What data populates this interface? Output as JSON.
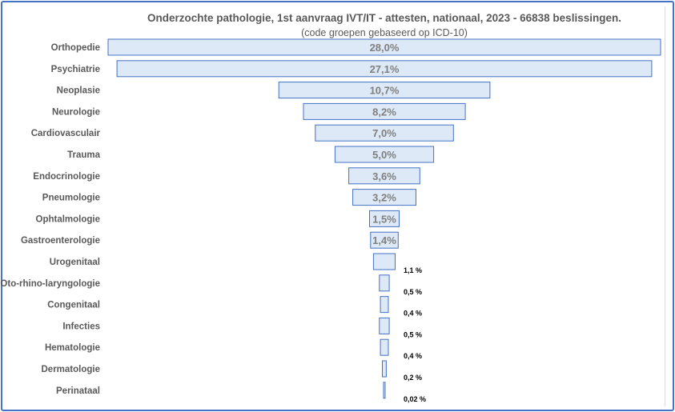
{
  "chart_data": {
    "type": "bar",
    "orientation": "horizontal-funnel",
    "title": "Onderzochte pathologie, 1st aanvraag IVT/IT - attesten, nationaal, 2023 -  66838 beslissingen.",
    "subtitle": "(code groepen gebaseerd op ICD-10)",
    "xlabel": "",
    "ylabel": "",
    "xlim": [
      0,
      28.0
    ],
    "grid": false,
    "legend": "none",
    "colors": {
      "bar_fill": "#dde9f7",
      "bar_stroke": "#4472c4",
      "label": "#595959",
      "value_in": "#7f7f7f"
    },
    "categories": [
      "Orthopedie",
      "Psychiatrie",
      "Neoplasie",
      "Neurologie",
      "Cardiovasculair",
      "Trauma",
      "Endocrinologie",
      "Pneumologie",
      "Ophtalmologie",
      "Gastroenterologie",
      "Urogenitaal",
      "Oto-rhino-laryngologie",
      "Congenitaal",
      "Infecties",
      "Hematologie",
      "Dermatologie",
      "Perinataal"
    ],
    "values": [
      28.0,
      27.1,
      10.7,
      8.2,
      7.0,
      5.0,
      3.6,
      3.2,
      1.5,
      1.4,
      1.1,
      0.5,
      0.4,
      0.5,
      0.4,
      0.2,
      0.02
    ],
    "value_labels": [
      "28,0%",
      "27,1%",
      "10,7%",
      "8,2%",
      "7,0%",
      "5,0%",
      "3,6%",
      "3,2%",
      "1,5%",
      "1,4%",
      "1,1 %",
      "0,5 %",
      "0,4 %",
      "0,5 %",
      "0,4 %",
      "0,2 %",
      "0,02 %"
    ],
    "label_inside": [
      true,
      true,
      true,
      true,
      true,
      true,
      true,
      true,
      true,
      true,
      false,
      false,
      false,
      false,
      false,
      false,
      false
    ]
  }
}
